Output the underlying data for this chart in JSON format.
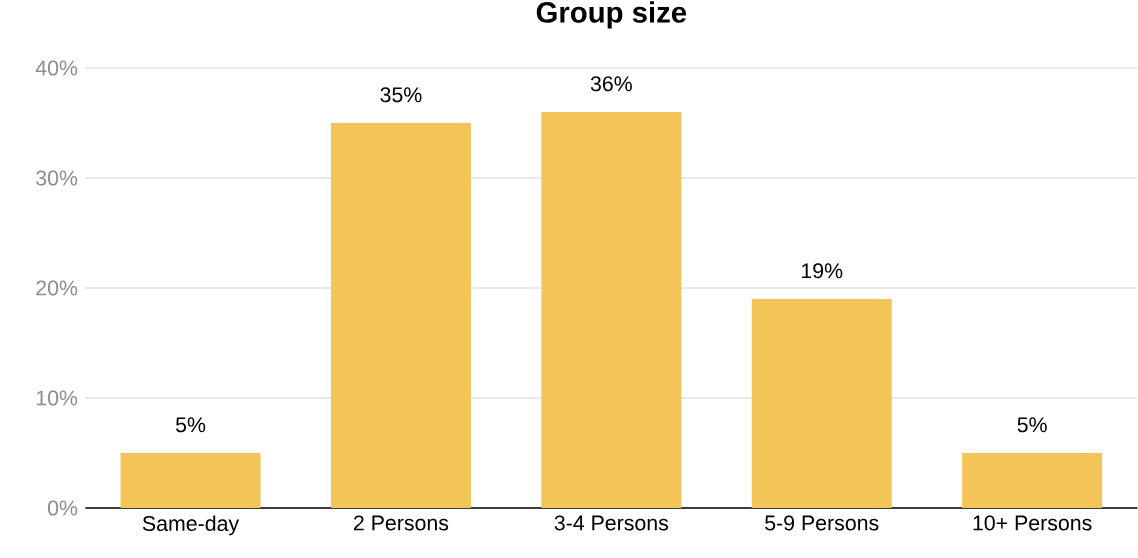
{
  "chart_data": {
    "type": "bar",
    "title": "Group size",
    "categories": [
      "Same-day",
      "2 Persons",
      "3-4 Persons",
      "5-9 Persons",
      "10+ Persons"
    ],
    "values": [
      5,
      35,
      36,
      19,
      5
    ],
    "value_labels": [
      "5%",
      "35%",
      "36%",
      "19%",
      "5%"
    ],
    "color": "#f3c457",
    "ylim": [
      0,
      40
    ],
    "yticks": [
      {
        "value": 0,
        "label": "0%"
      },
      {
        "value": 10,
        "label": "10%"
      },
      {
        "value": 20,
        "label": "20%"
      },
      {
        "value": 30,
        "label": "30%"
      },
      {
        "value": 40,
        "label": "40%"
      }
    ],
    "grid": "y"
  }
}
